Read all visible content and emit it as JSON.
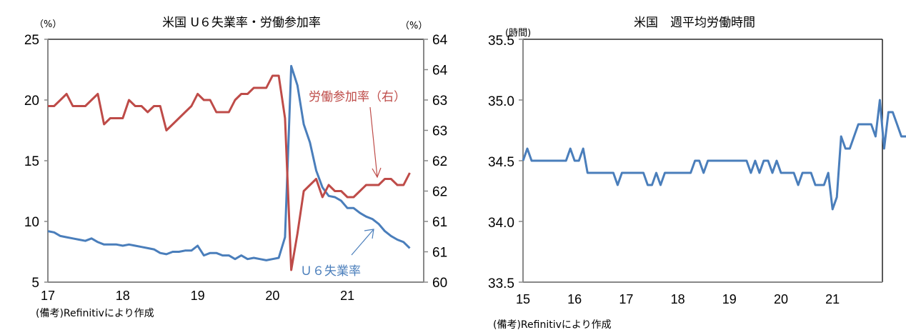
{
  "chart_data": [
    {
      "type": "line",
      "title": "米国 U６失業率・労働参加率",
      "left_unit": "（%）",
      "right_unit": "（%）",
      "ylim_left": [
        5,
        25
      ],
      "yticks_left": [
        "25",
        "20",
        "15",
        "10",
        "5"
      ],
      "ylim_right": [
        60,
        64
      ],
      "yticks_right": [
        "64",
        "64",
        "63",
        "63",
        "62",
        "62",
        "61",
        "61",
        "60"
      ],
      "xticks": [
        "17",
        "18",
        "19",
        "20",
        "21"
      ],
      "x_start": "2017-01",
      "note": "(備考)Refinitivにより作成",
      "series": [
        {
          "name": "Ｕ６失業率",
          "axis": "left",
          "color": "#4a7ebb",
          "values": [
            9.2,
            9.1,
            8.8,
            8.7,
            8.6,
            8.5,
            8.4,
            8.6,
            8.3,
            8.1,
            8.1,
            8.1,
            8.0,
            8.1,
            8.0,
            7.9,
            7.8,
            7.7,
            7.4,
            7.3,
            7.5,
            7.5,
            7.6,
            7.6,
            8.0,
            7.2,
            7.4,
            7.4,
            7.2,
            7.2,
            6.9,
            7.2,
            6.9,
            7.0,
            6.9,
            6.8,
            6.9,
            7.0,
            8.7,
            22.8,
            21.2,
            18.0,
            16.5,
            14.2,
            12.8,
            12.1,
            12.0,
            11.7,
            11.1,
            11.1,
            10.7,
            10.4,
            10.2,
            9.8,
            9.2,
            8.8,
            8.5,
            8.3,
            7.8
          ]
        },
        {
          "name": "労働参加率（右）",
          "axis": "right",
          "color": "#be4b48",
          "values": [
            62.9,
            62.9,
            63.0,
            63.1,
            62.9,
            62.9,
            62.9,
            63.0,
            63.1,
            62.6,
            62.7,
            62.7,
            62.7,
            63.0,
            62.9,
            62.9,
            62.8,
            62.9,
            62.9,
            62.5,
            62.6,
            62.7,
            62.8,
            62.9,
            63.1,
            63.0,
            63.0,
            62.8,
            62.8,
            62.8,
            63.0,
            63.1,
            63.1,
            63.2,
            63.2,
            63.2,
            63.4,
            63.4,
            62.7,
            60.2,
            60.8,
            61.5,
            61.6,
            61.7,
            61.4,
            61.6,
            61.5,
            61.5,
            61.4,
            61.4,
            61.5,
            61.6,
            61.6,
            61.6,
            61.7,
            61.7,
            61.6,
            61.6,
            61.8
          ]
        }
      ],
      "annotations": [
        {
          "text": "労働参加率（右）",
          "color": "#be4b48"
        },
        {
          "text": "Ｕ６失業率",
          "color": "#4a7ebb"
        }
      ]
    },
    {
      "type": "line",
      "title": "米国　週平均労働時間",
      "unit": "(時間)",
      "ylim": [
        33.5,
        35.5
      ],
      "yticks": [
        "35.5",
        "35.0",
        "34.5",
        "34.0",
        "33.5"
      ],
      "xticks": [
        "15",
        "16",
        "17",
        "18",
        "19",
        "20",
        "21"
      ],
      "x_start": "2015-01",
      "note": "(備考)Refinitivにより作成",
      "series": [
        {
          "name": "週平均労働時間",
          "color": "#4a7ebb",
          "values": [
            34.5,
            34.6,
            34.5,
            34.5,
            34.5,
            34.5,
            34.5,
            34.5,
            34.5,
            34.5,
            34.5,
            34.6,
            34.5,
            34.5,
            34.6,
            34.4,
            34.4,
            34.4,
            34.4,
            34.4,
            34.4,
            34.4,
            34.3,
            34.4,
            34.4,
            34.4,
            34.4,
            34.4,
            34.4,
            34.3,
            34.3,
            34.4,
            34.3,
            34.4,
            34.4,
            34.4,
            34.4,
            34.4,
            34.4,
            34.4,
            34.5,
            34.5,
            34.4,
            34.5,
            34.5,
            34.5,
            34.5,
            34.5,
            34.5,
            34.5,
            34.5,
            34.5,
            34.5,
            34.4,
            34.5,
            34.4,
            34.5,
            34.5,
            34.4,
            34.5,
            34.4,
            34.4,
            34.4,
            34.4,
            34.3,
            34.4,
            34.4,
            34.4,
            34.3,
            34.3,
            34.3,
            34.4,
            34.1,
            34.2,
            34.7,
            34.6,
            34.6,
            34.7,
            34.8,
            34.8,
            34.8,
            34.8,
            34.7,
            35.0,
            34.6,
            34.9,
            34.9,
            34.8,
            34.7,
            34.7,
            34.7,
            34.6,
            34.8,
            34.7,
            34.8
          ]
        }
      ]
    }
  ]
}
